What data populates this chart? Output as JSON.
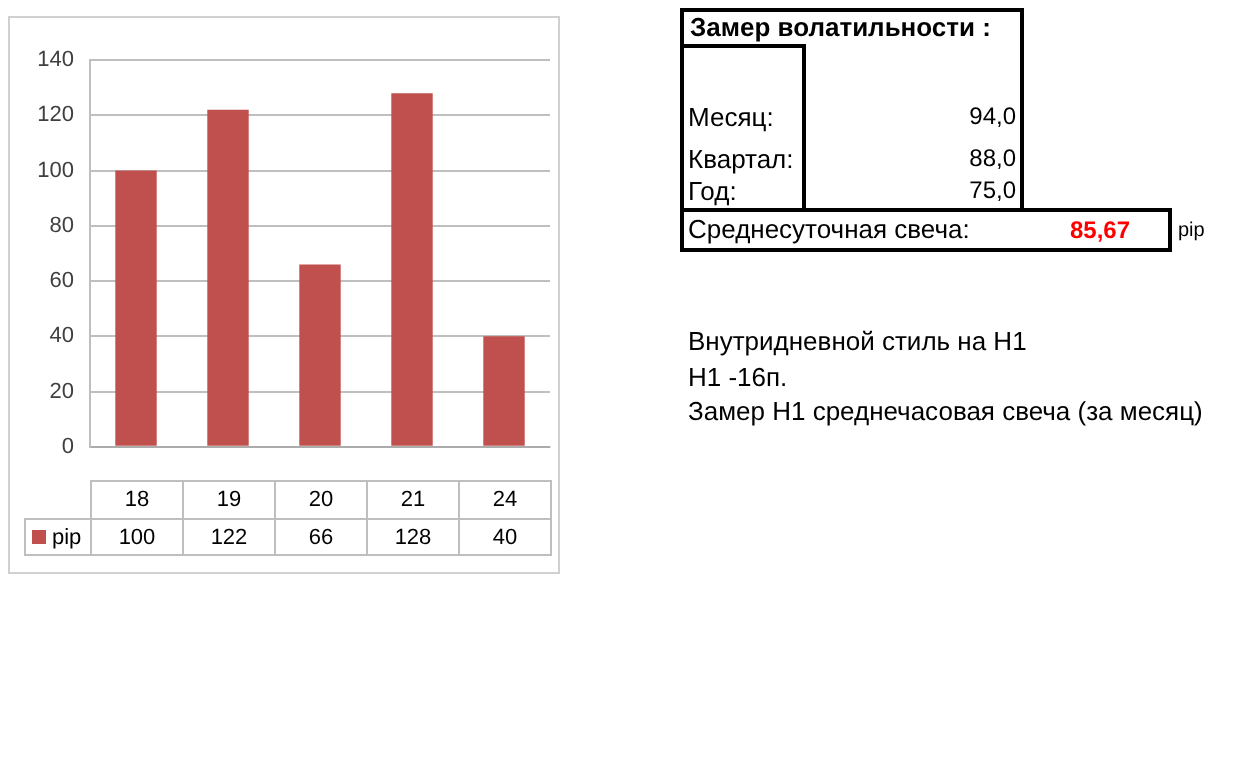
{
  "chart_data": {
    "type": "bar",
    "categories": [
      "18",
      "19",
      "20",
      "21",
      "24"
    ],
    "series": [
      {
        "name": "pip",
        "color": "#c0504d",
        "values": [
          100,
          122,
          66,
          128,
          40
        ]
      }
    ],
    "ylim": [
      0,
      140
    ],
    "yticks": [
      0,
      20,
      40,
      60,
      80,
      100,
      120,
      140
    ],
    "grid": "y",
    "legend": "bottom left",
    "data_labels": true,
    "annotations": [
      "Замер  волатильности  :",
      "Месяц:",
      "94,0",
      "Квартал:",
      "88,0",
      "Год:",
      "75,0",
      "Среднесуточная свеча:",
      "85,67",
      "pip",
      "Внутридневной стиль на Н1",
      "Н1 -16п.",
      "Замер Н1 среднечасовая свеча (за месяц)"
    ]
  }
}
